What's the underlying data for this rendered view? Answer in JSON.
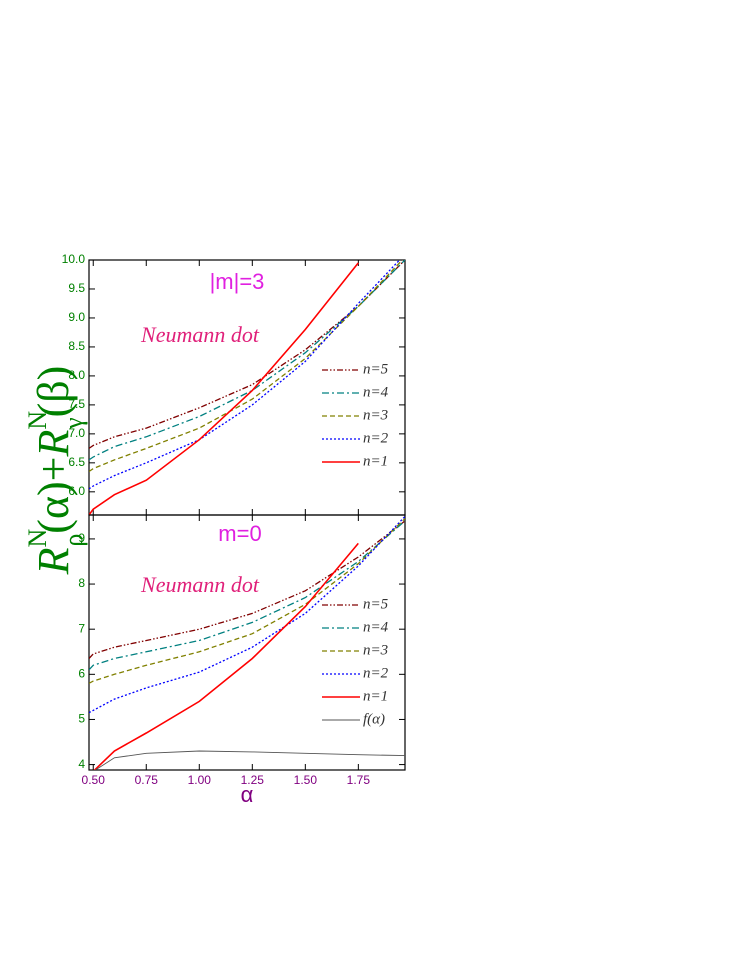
{
  "chart_data": [
    {
      "type": "line",
      "ylabel": [
        "R",
        "N",
        "ρ",
        "(α)+",
        "R",
        "N",
        "γ",
        "(β)"
      ],
      "annotations": [
        "|m|=3",
        "Neumann dot"
      ],
      "x": [
        0.48,
        0.5,
        0.6,
        0.75,
        1.0,
        1.25,
        1.5,
        1.75,
        1.97
      ],
      "xlim": [
        0.48,
        1.97
      ],
      "xticks": [
        0.5,
        0.75,
        1.0,
        1.25,
        1.5,
        1.75
      ],
      "ylim": [
        5.6,
        10.0
      ],
      "yticks": [
        {
          "value": 6.0,
          "label": "6.0"
        },
        {
          "value": 6.5,
          "label": "6.5"
        },
        {
          "value": 7.0,
          "label": "7.0"
        },
        {
          "value": 7.5,
          "label": "7.5"
        },
        {
          "value": 8.0,
          "label": "8.0"
        },
        {
          "value": 8.5,
          "label": "8.5"
        },
        {
          "value": 9.0,
          "label": "9.0"
        },
        {
          "value": 9.5,
          "label": "9.5"
        },
        {
          "value": 10.0,
          "label": "10.0"
        }
      ],
      "series": [
        {
          "name": "n=5",
          "color": "#800000",
          "style": "dashdotdot",
          "values": [
            6.75,
            6.8,
            6.95,
            7.1,
            7.45,
            7.85,
            8.45,
            9.2,
            10.0
          ]
        },
        {
          "name": "n=4",
          "color": "#008080",
          "style": "dashdot",
          "values": [
            6.55,
            6.6,
            6.78,
            6.95,
            7.3,
            7.75,
            8.4,
            9.2,
            10.0
          ]
        },
        {
          "name": "n=3",
          "color": "#808000",
          "style": "dash",
          "values": [
            6.35,
            6.4,
            6.55,
            6.75,
            7.1,
            7.6,
            8.3,
            9.2,
            10.05
          ]
        },
        {
          "name": "n=2",
          "color": "#0000ff",
          "style": "dot",
          "values": [
            6.05,
            6.1,
            6.28,
            6.5,
            6.9,
            7.5,
            8.25,
            9.25,
            10.1
          ]
        },
        {
          "name": "n=1",
          "color": "#ff0000",
          "style": "solid",
          "values": [
            5.6,
            5.7,
            5.95,
            6.2,
            6.9,
            7.75,
            8.8,
            9.95,
            null
          ]
        }
      ]
    },
    {
      "type": "line",
      "xlabel": "α",
      "annotations": [
        "m=0",
        "Neumann dot"
      ],
      "x": [
        0.48,
        0.5,
        0.6,
        0.75,
        1.0,
        1.25,
        1.5,
        1.75,
        1.97
      ],
      "xlim": [
        0.48,
        1.97
      ],
      "xticks": [
        {
          "value": 0.5,
          "label": "0.50"
        },
        {
          "value": 0.75,
          "label": "0.75"
        },
        {
          "value": 1.0,
          "label": "1.00"
        },
        {
          "value": 1.25,
          "label": "1.25"
        },
        {
          "value": 1.5,
          "label": "1.50"
        },
        {
          "value": 1.75,
          "label": "1.75"
        }
      ],
      "ylim": [
        3.88,
        9.53
      ],
      "yticks": [
        4,
        5,
        6,
        7,
        8,
        9
      ],
      "series": [
        {
          "name": "n=5",
          "color": "#800000",
          "style": "dashdotdot",
          "values": [
            6.35,
            6.45,
            6.6,
            6.75,
            7.0,
            7.35,
            7.85,
            8.6,
            9.4
          ]
        },
        {
          "name": "n=4",
          "color": "#008080",
          "style": "dashdot",
          "values": [
            6.1,
            6.2,
            6.35,
            6.5,
            6.75,
            7.15,
            7.7,
            8.5,
            9.4
          ]
        },
        {
          "name": "n=3",
          "color": "#808000",
          "style": "dash",
          "values": [
            5.8,
            5.85,
            6.0,
            6.2,
            6.5,
            6.9,
            7.55,
            8.45,
            9.45
          ]
        },
        {
          "name": "n=2",
          "color": "#0000ff",
          "style": "dot",
          "values": [
            5.15,
            5.2,
            5.45,
            5.7,
            6.05,
            6.6,
            7.35,
            8.4,
            9.5
          ]
        },
        {
          "name": "n=1",
          "color": "#ff0000",
          "style": "solid",
          "values": [
            3.7,
            3.85,
            4.3,
            4.7,
            5.4,
            6.35,
            7.5,
            8.9,
            null
          ]
        },
        {
          "name": "f(α)",
          "color": "#555555",
          "style": "thin",
          "values": [
            3.75,
            3.85,
            4.15,
            4.25,
            4.3,
            4.28,
            4.25,
            4.22,
            4.2
          ]
        }
      ]
    }
  ]
}
